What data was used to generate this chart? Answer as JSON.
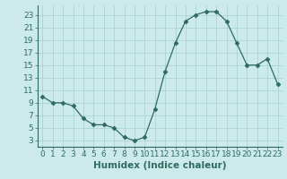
{
  "x": [
    0,
    1,
    2,
    3,
    4,
    5,
    6,
    7,
    8,
    9,
    10,
    11,
    12,
    13,
    14,
    15,
    16,
    17,
    18,
    19,
    20,
    21,
    22,
    23
  ],
  "y": [
    10,
    9,
    9,
    8.5,
    6.5,
    5.5,
    5.5,
    5,
    3.5,
    3,
    3.5,
    8,
    14,
    18.5,
    22,
    23,
    23.5,
    23.5,
    22,
    18.5,
    15,
    15,
    16,
    12
  ],
  "line_color": "#2e6b5e",
  "marker": "D",
  "marker_size": 2.5,
  "bg_color": "#cceaea",
  "grid_color": "#aad4d4",
  "xlabel": "Humidex (Indice chaleur)",
  "xlim": [
    -0.5,
    23.5
  ],
  "ylim": [
    2,
    24.5
  ],
  "yticks": [
    3,
    5,
    7,
    9,
    11,
    13,
    15,
    17,
    19,
    21,
    23
  ],
  "xticks": [
    0,
    1,
    2,
    3,
    4,
    5,
    6,
    7,
    8,
    9,
    10,
    11,
    12,
    13,
    14,
    15,
    16,
    17,
    18,
    19,
    20,
    21,
    22,
    23
  ],
  "tick_fontsize": 6.5,
  "xlabel_fontsize": 7.5
}
